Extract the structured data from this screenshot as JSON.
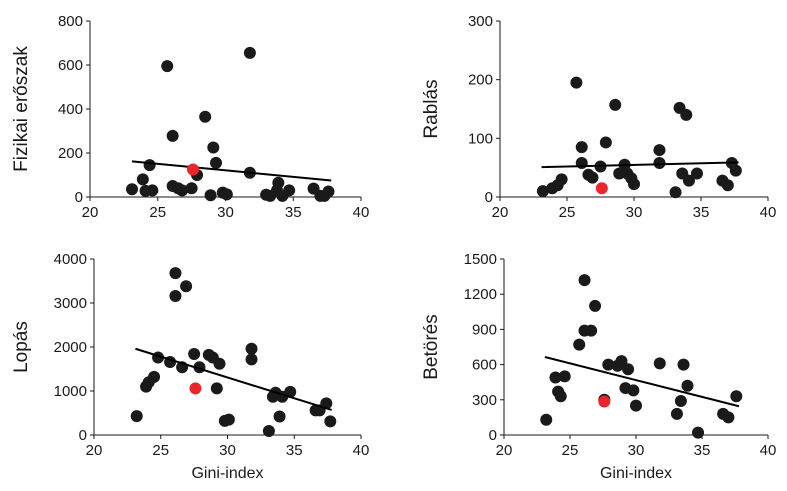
{
  "chart_data": [
    {
      "type": "scatter",
      "ylabel": "Fizikai erőszak",
      "xlabel": "",
      "xlim": [
        20,
        40
      ],
      "ylim": [
        0,
        800
      ],
      "xticks": [
        20,
        25,
        30,
        35,
        40
      ],
      "yticks": [
        0,
        200,
        400,
        600,
        800
      ],
      "points": [
        {
          "x": 23.1,
          "y": 35
        },
        {
          "x": 23.9,
          "y": 80
        },
        {
          "x": 24.1,
          "y": 28
        },
        {
          "x": 24.4,
          "y": 145
        },
        {
          "x": 24.6,
          "y": 30
        },
        {
          "x": 25.7,
          "y": 595
        },
        {
          "x": 26.1,
          "y": 278
        },
        {
          "x": 26.1,
          "y": 50
        },
        {
          "x": 26.5,
          "y": 40
        },
        {
          "x": 26.8,
          "y": 30
        },
        {
          "x": 27.5,
          "y": 40
        },
        {
          "x": 27.9,
          "y": 100
        },
        {
          "x": 28.5,
          "y": 365
        },
        {
          "x": 28.9,
          "y": 8
        },
        {
          "x": 29.1,
          "y": 225
        },
        {
          "x": 29.3,
          "y": 155
        },
        {
          "x": 29.8,
          "y": 20
        },
        {
          "x": 30.1,
          "y": 12
        },
        {
          "x": 31.8,
          "y": 655
        },
        {
          "x": 31.8,
          "y": 110
        },
        {
          "x": 33.0,
          "y": 10
        },
        {
          "x": 33.3,
          "y": 5
        },
        {
          "x": 33.8,
          "y": 30
        },
        {
          "x": 33.9,
          "y": 65
        },
        {
          "x": 34.2,
          "y": 5
        },
        {
          "x": 34.7,
          "y": 30
        },
        {
          "x": 36.5,
          "y": 38
        },
        {
          "x": 37.0,
          "y": 5
        },
        {
          "x": 37.3,
          "y": 5
        },
        {
          "x": 37.6,
          "y": 25
        }
      ],
      "highlight": {
        "x": 27.6,
        "y": 125
      },
      "trendline": {
        "x": [
          23.1,
          37.8
        ],
        "y": [
          162,
          75
        ]
      },
      "colors": {
        "points": "#1a1a1a",
        "highlight": "#e8262b",
        "line": "#000000"
      }
    },
    {
      "type": "scatter",
      "ylabel": "Rablás",
      "xlabel": "",
      "xlim": [
        20,
        40
      ],
      "ylim": [
        0,
        300
      ],
      "xticks": [
        20,
        25,
        30,
        35,
        40
      ],
      "yticks": [
        0,
        100,
        200,
        300
      ],
      "points": [
        {
          "x": 23.2,
          "y": 10
        },
        {
          "x": 23.9,
          "y": 15
        },
        {
          "x": 24.3,
          "y": 20
        },
        {
          "x": 24.6,
          "y": 30
        },
        {
          "x": 25.7,
          "y": 195
        },
        {
          "x": 26.1,
          "y": 85
        },
        {
          "x": 26.1,
          "y": 58
        },
        {
          "x": 26.6,
          "y": 38
        },
        {
          "x": 26.9,
          "y": 33
        },
        {
          "x": 27.5,
          "y": 52
        },
        {
          "x": 27.9,
          "y": 93
        },
        {
          "x": 28.6,
          "y": 157
        },
        {
          "x": 28.9,
          "y": 40
        },
        {
          "x": 29.3,
          "y": 55
        },
        {
          "x": 29.5,
          "y": 40
        },
        {
          "x": 29.8,
          "y": 32
        },
        {
          "x": 30.0,
          "y": 22
        },
        {
          "x": 31.9,
          "y": 80
        },
        {
          "x": 31.9,
          "y": 58
        },
        {
          "x": 33.1,
          "y": 8
        },
        {
          "x": 33.4,
          "y": 152
        },
        {
          "x": 33.6,
          "y": 40
        },
        {
          "x": 33.9,
          "y": 140
        },
        {
          "x": 34.1,
          "y": 28
        },
        {
          "x": 34.7,
          "y": 40
        },
        {
          "x": 36.6,
          "y": 28
        },
        {
          "x": 37.0,
          "y": 20
        },
        {
          "x": 37.3,
          "y": 58
        },
        {
          "x": 37.6,
          "y": 45
        }
      ],
      "highlight": {
        "x": 27.6,
        "y": 15
      },
      "trendline": {
        "x": [
          23.1,
          37.8
        ],
        "y": [
          51,
          59
        ]
      },
      "colors": {
        "points": "#1a1a1a",
        "highlight": "#e8262b",
        "line": "#000000"
      }
    },
    {
      "type": "scatter",
      "ylabel": "Lopás",
      "xlabel": "Gini-index",
      "xlim": [
        20,
        40
      ],
      "ylim": [
        0,
        4000
      ],
      "xticks": [
        20,
        25,
        30,
        35,
        40
      ],
      "yticks": [
        0,
        1000,
        2000,
        3000,
        4000
      ],
      "points": [
        {
          "x": 23.2,
          "y": 430
        },
        {
          "x": 23.9,
          "y": 1100
        },
        {
          "x": 24.1,
          "y": 1200
        },
        {
          "x": 24.5,
          "y": 1320
        },
        {
          "x": 24.8,
          "y": 1760
        },
        {
          "x": 25.7,
          "y": 1660
        },
        {
          "x": 26.1,
          "y": 3680
        },
        {
          "x": 26.1,
          "y": 3160
        },
        {
          "x": 26.6,
          "y": 1540
        },
        {
          "x": 26.9,
          "y": 3380
        },
        {
          "x": 27.5,
          "y": 1840
        },
        {
          "x": 27.9,
          "y": 1540
        },
        {
          "x": 28.6,
          "y": 1820
        },
        {
          "x": 28.9,
          "y": 1760
        },
        {
          "x": 29.2,
          "y": 1060
        },
        {
          "x": 29.4,
          "y": 1620
        },
        {
          "x": 29.8,
          "y": 320
        },
        {
          "x": 30.1,
          "y": 350
        },
        {
          "x": 31.8,
          "y": 1960
        },
        {
          "x": 31.8,
          "y": 1720
        },
        {
          "x": 33.1,
          "y": 90
        },
        {
          "x": 33.4,
          "y": 870
        },
        {
          "x": 33.6,
          "y": 960
        },
        {
          "x": 33.9,
          "y": 420
        },
        {
          "x": 34.1,
          "y": 870
        },
        {
          "x": 34.7,
          "y": 980
        },
        {
          "x": 36.6,
          "y": 560
        },
        {
          "x": 36.9,
          "y": 560
        },
        {
          "x": 37.4,
          "y": 720
        },
        {
          "x": 37.7,
          "y": 310
        }
      ],
      "highlight": {
        "x": 27.6,
        "y": 1060
      },
      "trendline": {
        "x": [
          23.1,
          37.8
        ],
        "y": [
          1960,
          570
        ]
      },
      "colors": {
        "points": "#1a1a1a",
        "highlight": "#e8262b",
        "line": "#000000"
      }
    },
    {
      "type": "scatter",
      "ylabel": "Betörés",
      "xlabel": "Gini-index",
      "xlim": [
        20,
        40
      ],
      "ylim": [
        0,
        1500
      ],
      "xticks": [
        20,
        25,
        30,
        35,
        40
      ],
      "yticks": [
        0,
        300,
        600,
        900,
        1200,
        1500
      ],
      "points": [
        {
          "x": 23.2,
          "y": 130
        },
        {
          "x": 23.9,
          "y": 490
        },
        {
          "x": 24.1,
          "y": 370
        },
        {
          "x": 24.3,
          "y": 330
        },
        {
          "x": 24.6,
          "y": 500
        },
        {
          "x": 25.7,
          "y": 770
        },
        {
          "x": 26.1,
          "y": 1320
        },
        {
          "x": 26.1,
          "y": 890
        },
        {
          "x": 26.6,
          "y": 890
        },
        {
          "x": 26.9,
          "y": 1100
        },
        {
          "x": 27.6,
          "y": 300
        },
        {
          "x": 27.9,
          "y": 600
        },
        {
          "x": 28.6,
          "y": 590
        },
        {
          "x": 28.9,
          "y": 630
        },
        {
          "x": 29.2,
          "y": 400
        },
        {
          "x": 29.4,
          "y": 560
        },
        {
          "x": 29.8,
          "y": 380
        },
        {
          "x": 30.0,
          "y": 250
        },
        {
          "x": 31.8,
          "y": 610
        },
        {
          "x": 33.1,
          "y": 180
        },
        {
          "x": 33.4,
          "y": 290
        },
        {
          "x": 33.6,
          "y": 600
        },
        {
          "x": 33.9,
          "y": 420
        },
        {
          "x": 34.7,
          "y": 20
        },
        {
          "x": 36.6,
          "y": 180
        },
        {
          "x": 37.0,
          "y": 150
        },
        {
          "x": 37.6,
          "y": 330
        }
      ],
      "highlight": {
        "x": 27.6,
        "y": 285
      },
      "trendline": {
        "x": [
          23.1,
          37.8
        ],
        "y": [
          665,
          245
        ]
      },
      "colors": {
        "points": "#1a1a1a",
        "highlight": "#e8262b",
        "line": "#000000"
      }
    }
  ]
}
